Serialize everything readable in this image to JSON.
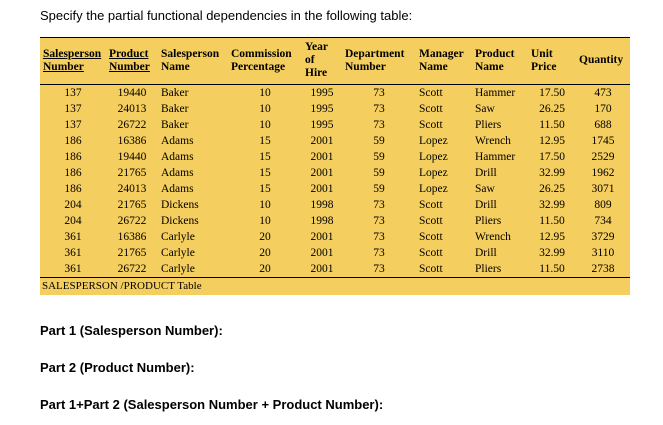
{
  "page": {
    "prompt": "Specify the partial functional dependencies in the following table:",
    "parts": [
      "Part 1 (Salesperson Number):",
      "Part 2 (Product Number):",
      "Part 1+Part 2 (Salesperson Number + Product Number):"
    ]
  },
  "table": {
    "caption": "SALESPERSON /PRODUCT Table",
    "bg_color": "#F4CE5E",
    "columns": [
      {
        "lines": [
          "Salesperson",
          "Number"
        ],
        "underline": true,
        "align": "center"
      },
      {
        "lines": [
          "Product",
          "Number"
        ],
        "underline": true,
        "align": "center"
      },
      {
        "lines": [
          "Salesperson",
          "Name"
        ],
        "underline": false,
        "align": "left"
      },
      {
        "lines": [
          "Commission",
          "Percentage"
        ],
        "underline": false,
        "align": "center"
      },
      {
        "lines": [
          "Year",
          "of",
          "Hire"
        ],
        "underline": false,
        "align": "center"
      },
      {
        "lines": [
          "Department",
          "Number"
        ],
        "underline": false,
        "align": "center"
      },
      {
        "lines": [
          "Manager",
          "Name"
        ],
        "underline": false,
        "align": "left"
      },
      {
        "lines": [
          "Product",
          "Name"
        ],
        "underline": false,
        "align": "left"
      },
      {
        "lines": [
          "Unit",
          "Price"
        ],
        "underline": false,
        "align": "center"
      },
      {
        "lines": [
          "Quantity"
        ],
        "underline": false,
        "align": "center"
      }
    ],
    "rows": [
      [
        "137",
        "19440",
        "Baker",
        "10",
        "1995",
        "73",
        "Scott",
        "Hammer",
        "17.50",
        "473"
      ],
      [
        "137",
        "24013",
        "Baker",
        "10",
        "1995",
        "73",
        "Scott",
        "Saw",
        "26.25",
        "170"
      ],
      [
        "137",
        "26722",
        "Baker",
        "10",
        "1995",
        "73",
        "Scott",
        "Pliers",
        "11.50",
        "688"
      ],
      [
        "186",
        "16386",
        "Adams",
        "15",
        "2001",
        "59",
        "Lopez",
        "Wrench",
        "12.95",
        "1745"
      ],
      [
        "186",
        "19440",
        "Adams",
        "15",
        "2001",
        "59",
        "Lopez",
        "Hammer",
        "17.50",
        "2529"
      ],
      [
        "186",
        "21765",
        "Adams",
        "15",
        "2001",
        "59",
        "Lopez",
        "Drill",
        "32.99",
        "1962"
      ],
      [
        "186",
        "24013",
        "Adams",
        "15",
        "2001",
        "59",
        "Lopez",
        "Saw",
        "26.25",
        "3071"
      ],
      [
        "204",
        "21765",
        "Dickens",
        "10",
        "1998",
        "73",
        "Scott",
        "Drill",
        "32.99",
        "809"
      ],
      [
        "204",
        "26722",
        "Dickens",
        "10",
        "1998",
        "73",
        "Scott",
        "Pliers",
        "11.50",
        "734"
      ],
      [
        "361",
        "16386",
        "Carlyle",
        "20",
        "2001",
        "73",
        "Scott",
        "Wrench",
        "12.95",
        "3729"
      ],
      [
        "361",
        "21765",
        "Carlyle",
        "20",
        "2001",
        "73",
        "Scott",
        "Drill",
        "32.99",
        "3110"
      ],
      [
        "361",
        "26722",
        "Carlyle",
        "20",
        "2001",
        "73",
        "Scott",
        "Pliers",
        "11.50",
        "2738"
      ]
    ]
  }
}
